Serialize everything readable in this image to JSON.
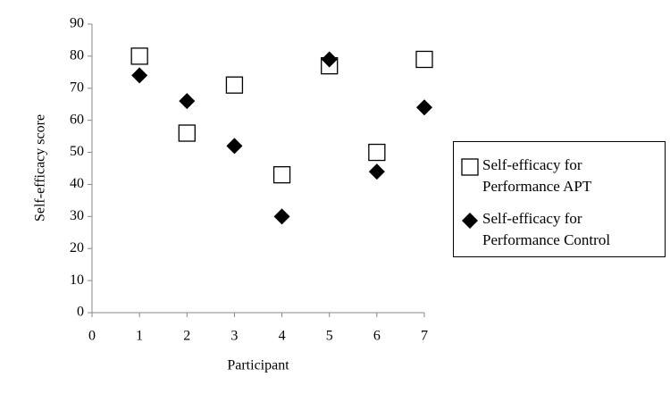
{
  "chart_data": {
    "type": "scatter",
    "xlabel": "Participant",
    "ylabel": "Self-efficacy score",
    "xlim": [
      0,
      7
    ],
    "xticks": [
      0,
      1,
      2,
      3,
      4,
      5,
      6,
      7
    ],
    "ylim": [
      0,
      90
    ],
    "yticks": [
      0,
      10,
      20,
      30,
      40,
      50,
      60,
      70,
      80,
      90
    ],
    "grid": false,
    "legend": "right",
    "series": [
      {
        "name": "Self-efficacy for Performance APT",
        "marker": "square",
        "color": "#000000",
        "x": [
          1,
          2,
          3,
          4,
          5,
          6,
          7
        ],
        "values": [
          80,
          56,
          71,
          43,
          77,
          50,
          79
        ]
      },
      {
        "name": "Self-efficacy for Performance Control",
        "marker": "diamond",
        "color": "#000000",
        "x": [
          1,
          2,
          3,
          4,
          5,
          6,
          7
        ],
        "values": [
          74,
          66,
          52,
          30,
          79,
          44,
          64
        ]
      }
    ]
  }
}
